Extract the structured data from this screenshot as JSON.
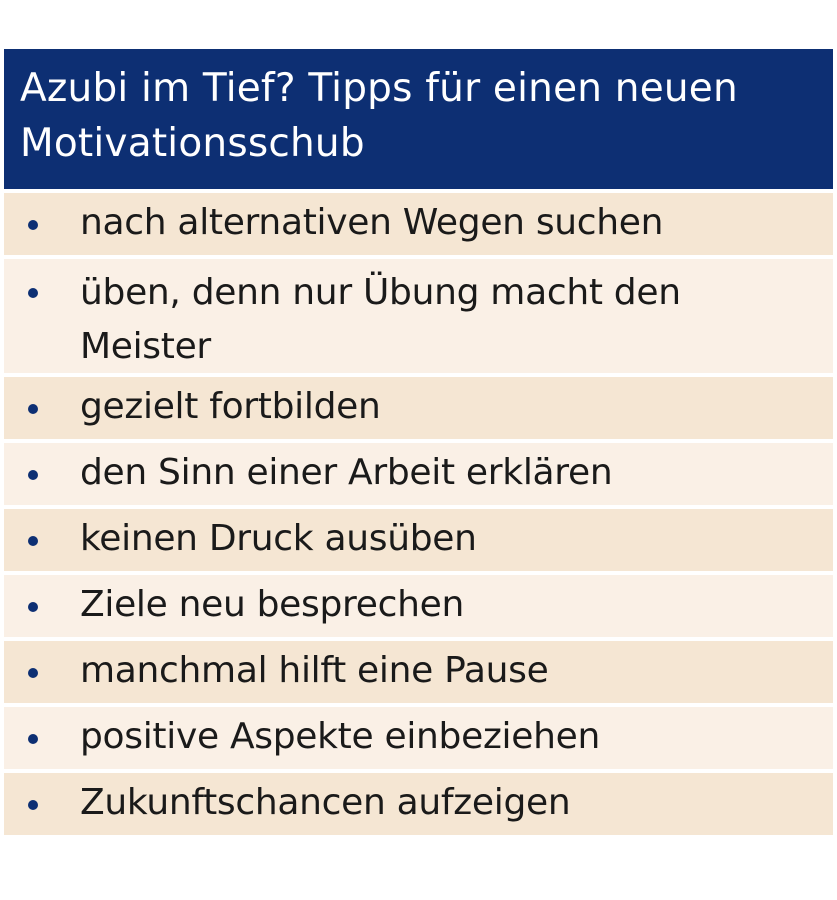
{
  "title": "Azubi im Tief? Tipps für einen neuen Motivationsschub",
  "colors": {
    "header_bg": "#0d2f73",
    "row_bg_a": "#f5e6d3",
    "row_bg_b": "#faf0e6",
    "bullet": "#0d2f73"
  },
  "items": [
    "nach alternativen Wegen suchen",
    "üben, denn nur Übung macht den Meister",
    "gezielt fortbilden",
    "den Sinn einer Arbeit erklären",
    "keinen Druck ausüben",
    "Ziele neu besprechen",
    "manchmal hilft eine Pause",
    "positive Aspekte einbeziehen",
    "Zukunftschancen aufzeigen"
  ]
}
